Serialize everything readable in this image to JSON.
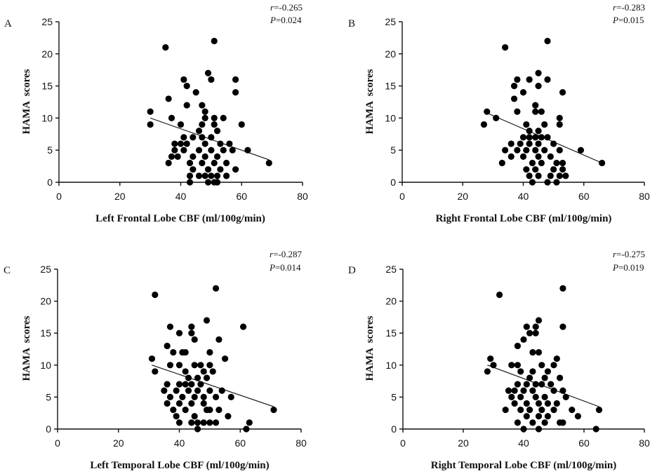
{
  "chart_data": [
    {
      "type": "scatter",
      "panel": "A",
      "r_label": "r",
      "r_value": "=-0.265",
      "p_label": "P",
      "p_value": "=0.024",
      "xlabel": "Left Frontal Lobe CBF (ml/100g/min)",
      "ylabel": "HAMA  scores",
      "xlim": [
        0,
        80
      ],
      "ylim": [
        0,
        25
      ],
      "xticks": [
        "0",
        "20",
        "40",
        "60",
        "80"
      ],
      "yticks": [
        "0",
        "5",
        "10",
        "15",
        "20",
        "25"
      ],
      "fit": [
        [
          30,
          10
        ],
        [
          69,
          3.5
        ]
      ],
      "points": [
        [
          30,
          11
        ],
        [
          30,
          9
        ],
        [
          35,
          21
        ],
        [
          51,
          22
        ],
        [
          41,
          16
        ],
        [
          42,
          15
        ],
        [
          47,
          12
        ],
        [
          42,
          12
        ],
        [
          36,
          13
        ],
        [
          37,
          10
        ],
        [
          40,
          9
        ],
        [
          41,
          7
        ],
        [
          45,
          14
        ],
        [
          48,
          11
        ],
        [
          49,
          17
        ],
        [
          50,
          16
        ],
        [
          58,
          16
        ],
        [
          58,
          14
        ],
        [
          48,
          10
        ],
        [
          51,
          10
        ],
        [
          54,
          10
        ],
        [
          60,
          9
        ],
        [
          47,
          9
        ],
        [
          51,
          9
        ],
        [
          46,
          8
        ],
        [
          52,
          8
        ],
        [
          44,
          7
        ],
        [
          47,
          7
        ],
        [
          50,
          7
        ],
        [
          38,
          6
        ],
        [
          40,
          6
        ],
        [
          42,
          6
        ],
        [
          48,
          6
        ],
        [
          53,
          6
        ],
        [
          56,
          6
        ],
        [
          38,
          5
        ],
        [
          41,
          5
        ],
        [
          46,
          5
        ],
        [
          50,
          5
        ],
        [
          54,
          5
        ],
        [
          57,
          5
        ],
        [
          62,
          5
        ],
        [
          37,
          4
        ],
        [
          39,
          4
        ],
        [
          44,
          4
        ],
        [
          48,
          4
        ],
        [
          52,
          4
        ],
        [
          36,
          3
        ],
        [
          43,
          3
        ],
        [
          47,
          3
        ],
        [
          51,
          3
        ],
        [
          55,
          3
        ],
        [
          69,
          3
        ],
        [
          44,
          2
        ],
        [
          49,
          2
        ],
        [
          53,
          2
        ],
        [
          58,
          2
        ],
        [
          43,
          1
        ],
        [
          46,
          1
        ],
        [
          48,
          1
        ],
        [
          50,
          1
        ],
        [
          52,
          1
        ],
        [
          55,
          1
        ],
        [
          43,
          0
        ],
        [
          49,
          0
        ],
        [
          51,
          0
        ],
        [
          52,
          0
        ]
      ]
    },
    {
      "type": "scatter",
      "panel": "B",
      "r_label": "r",
      "r_value": "=-0.283",
      "p_label": "P",
      "p_value": "=0.015",
      "xlabel": "Right Frontal Lobe CBF (ml/100g/min)",
      "ylabel": "HAMA  scores",
      "xlim": [
        0,
        80
      ],
      "ylim": [
        0,
        25
      ],
      "xticks": [
        "0",
        "20",
        "40",
        "60",
        "80"
      ],
      "yticks": [
        "0",
        "5",
        "10",
        "15",
        "20",
        "25"
      ],
      "fit": [
        [
          27,
          11
        ],
        [
          66,
          3
        ]
      ],
      "points": [
        [
          27,
          9
        ],
        [
          28,
          11
        ],
        [
          34,
          21
        ],
        [
          48,
          22
        ],
        [
          38,
          16
        ],
        [
          42,
          16
        ],
        [
          45,
          17
        ],
        [
          48,
          16
        ],
        [
          37,
          15
        ],
        [
          45,
          15
        ],
        [
          37,
          13
        ],
        [
          40,
          14
        ],
        [
          44,
          12
        ],
        [
          53,
          14
        ],
        [
          31,
          10
        ],
        [
          38,
          11
        ],
        [
          44,
          11
        ],
        [
          46,
          11
        ],
        [
          52,
          10
        ],
        [
          41,
          9
        ],
        [
          47,
          9
        ],
        [
          52,
          9
        ],
        [
          42,
          8
        ],
        [
          45,
          8
        ],
        [
          40,
          7
        ],
        [
          42,
          7
        ],
        [
          44,
          7
        ],
        [
          46,
          7
        ],
        [
          48,
          7
        ],
        [
          36,
          6
        ],
        [
          39,
          6
        ],
        [
          42,
          6
        ],
        [
          45,
          6
        ],
        [
          50,
          6
        ],
        [
          34,
          5
        ],
        [
          38,
          5
        ],
        [
          41,
          5
        ],
        [
          44,
          5
        ],
        [
          47,
          5
        ],
        [
          52,
          5
        ],
        [
          59,
          5
        ],
        [
          36,
          4
        ],
        [
          40,
          4
        ],
        [
          45,
          4
        ],
        [
          49,
          4
        ],
        [
          33,
          3
        ],
        [
          43,
          3
        ],
        [
          46,
          3
        ],
        [
          51,
          3
        ],
        [
          53,
          3
        ],
        [
          66,
          3
        ],
        [
          41,
          2
        ],
        [
          44,
          2
        ],
        [
          50,
          2
        ],
        [
          53,
          2
        ],
        [
          42,
          1
        ],
        [
          45,
          1
        ],
        [
          49,
          1
        ],
        [
          52,
          1
        ],
        [
          54,
          1
        ],
        [
          43,
          0
        ],
        [
          48,
          0
        ],
        [
          51,
          0
        ]
      ]
    },
    {
      "type": "scatter",
      "panel": "C",
      "r_label": "r",
      "r_value": "=-0.287",
      "p_label": "P",
      "p_value": "=0.014",
      "xlabel": "Left Temporal  Lobe CBF (ml/100g/min)",
      "ylabel": "HAMA  scores",
      "xlim": [
        0,
        80
      ],
      "ylim": [
        0,
        25
      ],
      "xticks": [
        "0",
        "20",
        "40",
        "60",
        "80"
      ],
      "yticks": [
        "0",
        "5",
        "10",
        "15",
        "20",
        "25"
      ],
      "fit": [
        [
          31,
          10
        ],
        [
          71,
          3.5
        ]
      ],
      "points": [
        [
          31,
          11
        ],
        [
          32,
          9
        ],
        [
          32,
          21
        ],
        [
          52,
          22
        ],
        [
          37,
          16
        ],
        [
          44,
          16
        ],
        [
          44,
          15
        ],
        [
          49,
          17
        ],
        [
          61,
          16
        ],
        [
          40,
          15
        ],
        [
          45,
          14
        ],
        [
          53,
          14
        ],
        [
          36,
          13
        ],
        [
          38,
          12
        ],
        [
          42,
          12
        ],
        [
          41,
          12
        ],
        [
          50,
          12
        ],
        [
          55,
          11
        ],
        [
          37,
          10
        ],
        [
          40,
          10
        ],
        [
          45,
          10
        ],
        [
          47,
          10
        ],
        [
          50,
          10
        ],
        [
          42,
          9
        ],
        [
          48,
          9
        ],
        [
          51,
          9
        ],
        [
          43,
          8
        ],
        [
          46,
          8
        ],
        [
          49,
          8
        ],
        [
          36,
          7
        ],
        [
          40,
          7
        ],
        [
          42,
          7
        ],
        [
          44,
          7
        ],
        [
          47,
          7
        ],
        [
          35,
          6
        ],
        [
          39,
          6
        ],
        [
          43,
          6
        ],
        [
          46,
          6
        ],
        [
          50,
          6
        ],
        [
          54,
          6
        ],
        [
          37,
          5
        ],
        [
          41,
          5
        ],
        [
          45,
          5
        ],
        [
          48,
          5
        ],
        [
          52,
          5
        ],
        [
          57,
          5
        ],
        [
          36,
          4
        ],
        [
          40,
          4
        ],
        [
          44,
          4
        ],
        [
          48,
          4
        ],
        [
          38,
          3
        ],
        [
          42,
          3
        ],
        [
          49,
          3
        ],
        [
          50,
          3
        ],
        [
          53,
          3
        ],
        [
          71,
          3
        ],
        [
          39,
          2
        ],
        [
          45,
          2
        ],
        [
          56,
          2
        ],
        [
          40,
          1
        ],
        [
          44,
          1
        ],
        [
          46,
          1
        ],
        [
          48,
          1
        ],
        [
          50,
          1
        ],
        [
          52,
          1
        ],
        [
          63,
          1
        ],
        [
          46,
          0
        ],
        [
          62,
          0
        ]
      ]
    },
    {
      "type": "scatter",
      "panel": "D",
      "r_label": "r",
      "r_value": "=-0.275",
      "p_label": "P",
      "p_value": "=0.019",
      "xlabel": "Right Temporal  Lobe CBF (ml/100g/min)",
      "ylabel": "HAMA  scores",
      "xlim": [
        0,
        80
      ],
      "ylim": [
        0,
        25
      ],
      "xticks": [
        "0",
        "20",
        "40",
        "60",
        "80"
      ],
      "yticks": [
        "0",
        "5",
        "10",
        "15",
        "20",
        "25"
      ],
      "fit": [
        [
          28,
          10
        ],
        [
          65,
          3.5
        ]
      ],
      "points": [
        [
          28,
          9
        ],
        [
          29,
          11
        ],
        [
          32,
          21
        ],
        [
          53,
          22
        ],
        [
          41,
          16
        ],
        [
          44,
          16
        ],
        [
          45,
          17
        ],
        [
          53,
          16
        ],
        [
          42,
          15
        ],
        [
          44,
          15
        ],
        [
          38,
          13
        ],
        [
          40,
          14
        ],
        [
          43,
          12
        ],
        [
          45,
          12
        ],
        [
          51,
          11
        ],
        [
          30,
          10
        ],
        [
          36,
          10
        ],
        [
          38,
          10
        ],
        [
          46,
          10
        ],
        [
          50,
          10
        ],
        [
          39,
          9
        ],
        [
          43,
          9
        ],
        [
          48,
          9
        ],
        [
          42,
          8
        ],
        [
          47,
          8
        ],
        [
          52,
          8
        ],
        [
          38,
          7
        ],
        [
          41,
          7
        ],
        [
          44,
          7
        ],
        [
          46,
          7
        ],
        [
          49,
          7
        ],
        [
          35,
          6
        ],
        [
          37,
          6
        ],
        [
          40,
          6
        ],
        [
          43,
          6
        ],
        [
          50,
          6
        ],
        [
          53,
          6
        ],
        [
          36,
          5
        ],
        [
          39,
          5
        ],
        [
          44,
          5
        ],
        [
          47,
          5
        ],
        [
          54,
          5
        ],
        [
          37,
          4
        ],
        [
          41,
          4
        ],
        [
          45,
          4
        ],
        [
          48,
          4
        ],
        [
          51,
          4
        ],
        [
          34,
          3
        ],
        [
          39,
          3
        ],
        [
          42,
          3
        ],
        [
          46,
          3
        ],
        [
          50,
          3
        ],
        [
          56,
          3
        ],
        [
          65,
          3
        ],
        [
          41,
          2
        ],
        [
          45,
          2
        ],
        [
          48,
          2
        ],
        [
          58,
          2
        ],
        [
          38,
          1
        ],
        [
          43,
          1
        ],
        [
          47,
          1
        ],
        [
          52,
          1
        ],
        [
          53,
          1
        ],
        [
          40,
          0
        ],
        [
          45,
          0
        ],
        [
          64,
          0
        ]
      ]
    }
  ]
}
